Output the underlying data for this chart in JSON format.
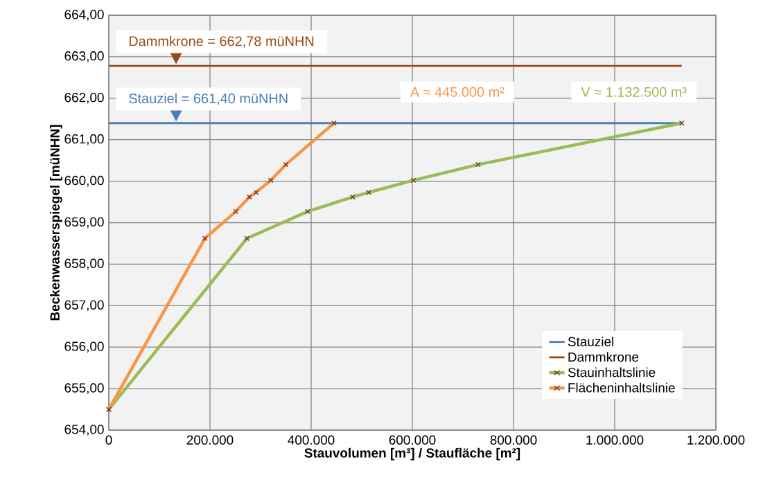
{
  "chart_data": {
    "type": "line",
    "xlabel": "Stauvolumen [m³] / Staufläche [m²]",
    "ylabel": "Beckenwasserspiegel [müNHN]",
    "series": [
      {
        "name": "Stauziel",
        "color": "#4a7ebb",
        "x": [
          0,
          1132500
        ],
        "values": [
          661.4,
          661.4
        ]
      },
      {
        "name": "Dammkrone",
        "color": "#9c4a0e",
        "x": [
          0,
          1132500
        ],
        "values": [
          662.78,
          662.78
        ]
      },
      {
        "name": "Stauinhaltslinie",
        "color": "#9bbb59",
        "x": [
          0,
          273000,
          393000,
          482000,
          514000,
          602000,
          730000,
          1132500
        ],
        "values": [
          654.5,
          658.62,
          659.27,
          659.62,
          659.73,
          660.02,
          660.4,
          661.4
        ],
        "marker": "cross"
      },
      {
        "name": "Flächeninhaltslinie",
        "color": "#f79646",
        "x": [
          0,
          190000,
          251000,
          278000,
          291000,
          320000,
          350000,
          445000
        ],
        "values": [
          654.5,
          658.62,
          659.27,
          659.62,
          659.73,
          660.02,
          660.4,
          661.4
        ],
        "marker": "cross"
      }
    ],
    "xlim": [
      0,
      1200000
    ],
    "xticks": [
      0,
      {
        "value": 200000,
        "label": "200.000"
      },
      {
        "value": 400000,
        "label": "400.000"
      },
      {
        "value": 600000,
        "label": "600.000"
      },
      {
        "value": 800000,
        "label": "800.000"
      },
      {
        "value": 1000000,
        "label": "1.000.000"
      },
      {
        "value": 1200000,
        "label": "1.200.000"
      }
    ],
    "ylim": [
      654,
      664
    ],
    "yticks": [
      {
        "value": 654,
        "label": "654,00"
      },
      {
        "value": 655,
        "label": "655,00"
      },
      {
        "value": 656,
        "label": "656,00"
      },
      {
        "value": 657,
        "label": "657,00"
      },
      {
        "value": 658,
        "label": "658,00"
      },
      {
        "value": 659,
        "label": "659,00"
      },
      {
        "value": 660,
        "label": "660,00"
      },
      {
        "value": 661,
        "label": "661,00"
      },
      {
        "value": 662,
        "label": "662,00"
      },
      {
        "value": 663,
        "label": "663,00"
      },
      {
        "value": 664,
        "label": "664,00"
      }
    ],
    "annotations": [
      {
        "text": "Dammkrone = 662,78 müNHN",
        "x": 133000,
        "y": 662.78
      },
      {
        "text": "Stauziel = 661,40 müNHN",
        "x": 133000,
        "y": 661.4
      },
      "A ≈ 445.000 m²",
      "V ≈ 1.132.500 m³"
    ],
    "grid": true,
    "legend": "bottom right"
  }
}
